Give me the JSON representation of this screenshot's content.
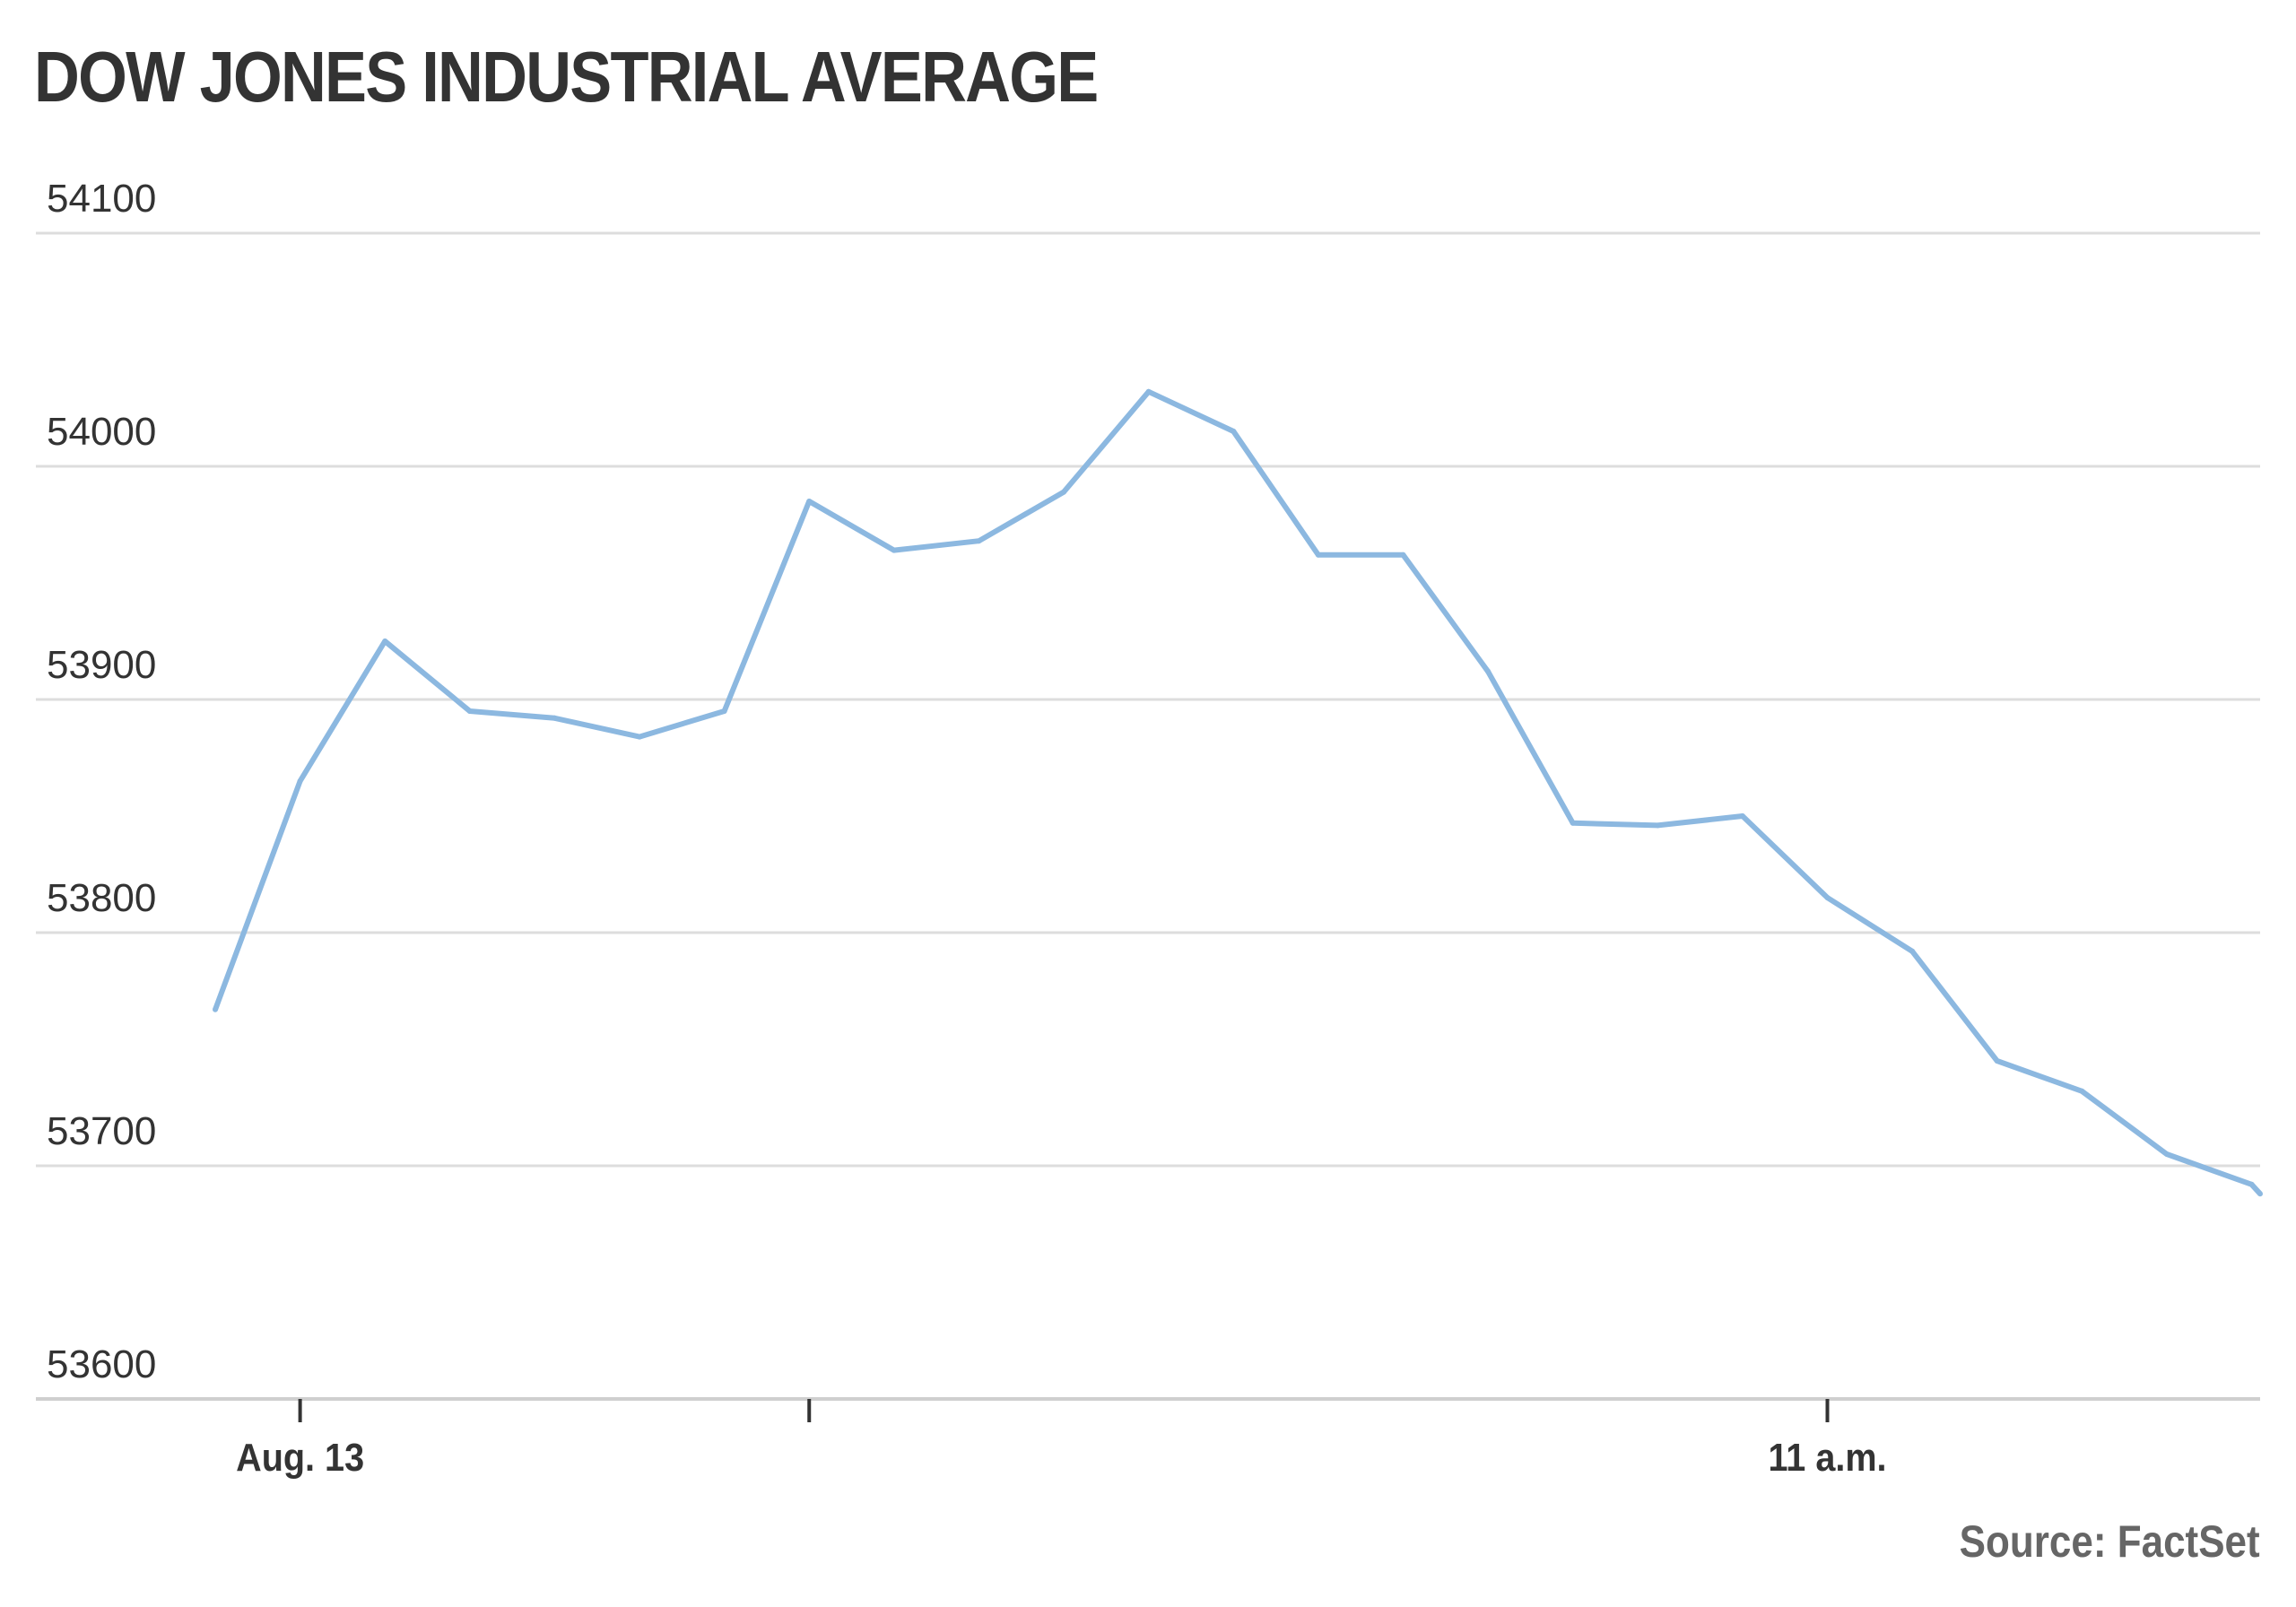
{
  "chart_data": {
    "type": "line",
    "title": "DOW JONES INDUSTRIAL AVERAGE",
    "source": "Source: FactSet",
    "xlabel": "",
    "ylabel": "",
    "ylim": [
      53600,
      54100
    ],
    "y_ticks": [
      53600,
      53700,
      53800,
      53900,
      54000,
      54100
    ],
    "y_tick_labels": [
      "53600",
      "53700",
      "53800",
      "53900",
      "54000",
      "54100"
    ],
    "x_ticks": [
      {
        "x": 1,
        "label": "Aug. 13"
      },
      {
        "x": 7,
        "label": ""
      },
      {
        "x": 19,
        "label": "11 a.m."
      }
    ],
    "xlim": [
      0,
      24.1
    ],
    "grid": true,
    "line_color": "#8cb8e0",
    "series": [
      {
        "x": [
          0,
          1,
          2,
          3,
          4,
          5,
          6,
          7,
          8,
          9,
          10,
          11,
          12,
          13,
          14,
          15,
          16,
          17,
          18,
          19,
          20,
          21,
          22,
          23,
          24,
          24.1
        ],
        "values": [
          53767,
          53865,
          53925,
          53895,
          53892,
          53884,
          53895,
          53985,
          53964,
          53968,
          53989,
          54032,
          54015,
          53962,
          53962,
          53912,
          53847,
          53846,
          53850,
          53815,
          53792,
          53745,
          53732,
          53705,
          53692,
          53688
        ]
      }
    ]
  }
}
